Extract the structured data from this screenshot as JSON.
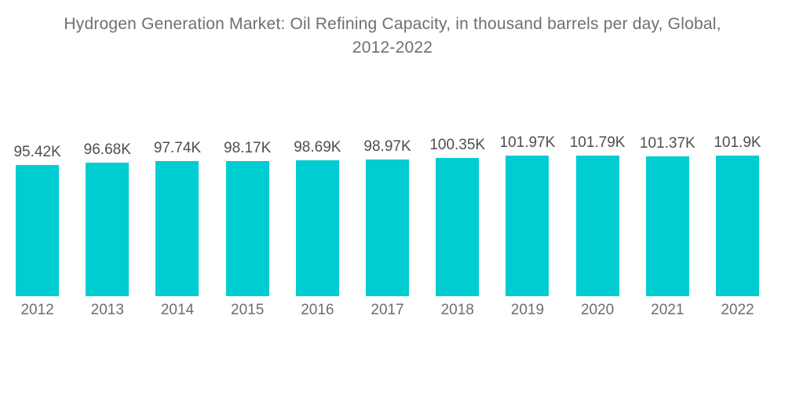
{
  "title": {
    "text": "Hydrogen Generation Market: Oil Refining Capacity, in thousand barrels per day, Global, 2012-2022",
    "line1": "Hydrogen Generation Market: Oil Refining Capacity, in thousand barrels per day, Global,",
    "line2": "2012-2022",
    "color": "#6f6f6f"
  },
  "chart_data": {
    "type": "bar",
    "title": "Hydrogen Generation Market: Oil Refining Capacity, in thousand barrels per day, Global, 2012-2022",
    "unit": "thousand barrels per day",
    "categories": [
      "2012",
      "2013",
      "2014",
      "2015",
      "2016",
      "2017",
      "2018",
      "2019",
      "2020",
      "2021",
      "2022"
    ],
    "values": [
      95.42,
      96.68,
      97.74,
      98.17,
      98.69,
      98.97,
      100.35,
      101.97,
      101.79,
      101.37,
      101.9
    ],
    "value_labels": [
      "95.42K",
      "96.68K",
      "97.74K",
      "98.17K",
      "98.69K",
      "98.97K",
      "100.35K",
      "101.97K",
      "101.79K",
      "101.37K",
      "101.9K"
    ],
    "value_suffix": "K",
    "xlabel": "",
    "ylabel": "",
    "legend": "none",
    "grid": false,
    "axis_lines_visible": false,
    "value_labels_position": "above-bars",
    "colors": {
      "bar": "#00cdd2",
      "value_label": "#4f4f4f",
      "axis_label": "#6d6d6d"
    }
  }
}
